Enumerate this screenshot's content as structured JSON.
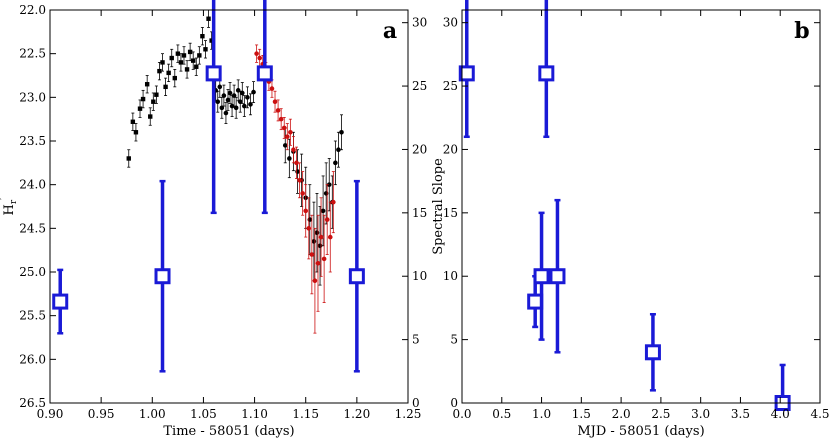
{
  "chart_data": [
    {
      "type": "scatter",
      "panel_label": "a",
      "xlabel": "Time - 58051 (days)",
      "ylabel_left": "H",
      "ylabel_left_sub": "r",
      "ylabel_left_sup": "′",
      "ylabel_right": "Spectral Slope",
      "xlim": [
        0.9,
        1.25
      ],
      "ylim_left": [
        26.5,
        22.0
      ],
      "ylim_right": [
        0,
        31
      ],
      "left_axis_inverted": true,
      "grid": false,
      "x_ticks": [
        "0.90",
        "0.95",
        "1.00",
        "1.05",
        "1.10",
        "1.15",
        "1.20",
        "1.25"
      ],
      "y_left_ticks": [
        "22.0",
        "22.5",
        "23.0",
        "23.5",
        "24.0",
        "24.5",
        "25.0",
        "25.5",
        "26.0",
        "26.5"
      ],
      "y_right_ticks": [
        "0",
        "5",
        "10",
        "15",
        "20",
        "25",
        "30"
      ],
      "series": [
        {
          "color": "#000000",
          "marker": "square",
          "axis": "left",
          "points": [
            [
              0.977,
              23.7,
              0.1
            ],
            [
              0.981,
              23.28,
              0.1
            ],
            [
              0.984,
              23.4,
              0.1
            ],
            [
              0.988,
              23.13,
              0.1
            ],
            [
              0.991,
              23.02,
              0.1
            ],
            [
              0.995,
              22.85,
              0.1
            ],
            [
              0.998,
              23.22,
              0.1
            ],
            [
              1.001,
              23.05,
              0.1
            ],
            [
              1.004,
              22.97,
              0.1
            ],
            [
              1.007,
              22.7,
              0.1
            ],
            [
              1.01,
              22.6,
              0.1
            ],
            [
              1.013,
              22.88,
              0.1
            ],
            [
              1.016,
              22.72,
              0.1
            ],
            [
              1.019,
              22.55,
              0.1
            ],
            [
              1.022,
              22.78,
              0.1
            ],
            [
              1.025,
              22.5,
              0.1
            ],
            [
              1.028,
              22.6,
              0.1
            ],
            [
              1.031,
              22.52,
              0.1
            ],
            [
              1.034,
              22.68,
              0.1
            ],
            [
              1.037,
              22.48,
              0.1
            ],
            [
              1.04,
              22.58,
              0.1
            ],
            [
              1.043,
              22.65,
              0.1
            ],
            [
              1.046,
              22.52,
              0.1
            ],
            [
              1.049,
              22.3,
              0.1
            ],
            [
              1.052,
              22.45,
              0.1
            ],
            [
              1.055,
              22.1,
              0.1
            ],
            [
              1.058,
              22.35,
              0.1
            ]
          ]
        },
        {
          "color": "#000000",
          "marker": "circle",
          "axis": "left",
          "points": [
            [
              1.062,
              22.92,
              0.12
            ],
            [
              1.064,
              23.05,
              0.12
            ],
            [
              1.066,
              22.88,
              0.12
            ],
            [
              1.068,
              23.12,
              0.12
            ],
            [
              1.07,
              22.98,
              0.12
            ],
            [
              1.072,
              23.18,
              0.12
            ],
            [
              1.074,
              23.03,
              0.12
            ],
            [
              1.076,
              22.95,
              0.12
            ],
            [
              1.078,
              23.1,
              0.12
            ],
            [
              1.08,
              22.98,
              0.12
            ],
            [
              1.082,
              23.12,
              0.12
            ],
            [
              1.084,
              22.92,
              0.12
            ],
            [
              1.086,
              23.05,
              0.12
            ],
            [
              1.088,
              22.95,
              0.12
            ],
            [
              1.09,
              23.1,
              0.12
            ],
            [
              1.093,
              23.0,
              0.12
            ],
            [
              1.096,
              23.08,
              0.12
            ],
            [
              1.099,
              22.94,
              0.12
            ],
            [
              1.13,
              23.55,
              0.2
            ],
            [
              1.134,
              23.7,
              0.22
            ],
            [
              1.138,
              23.62,
              0.22
            ],
            [
              1.142,
              23.85,
              0.25
            ],
            [
              1.146,
              23.95,
              0.3
            ],
            [
              1.15,
              24.15,
              0.35
            ],
            [
              1.154,
              24.4,
              0.4
            ],
            [
              1.158,
              24.65,
              0.45
            ],
            [
              1.161,
              24.55,
              0.45
            ],
            [
              1.164,
              24.7,
              0.45
            ],
            [
              1.167,
              24.3,
              0.4
            ],
            [
              1.17,
              24.1,
              0.35
            ],
            [
              1.173,
              24.0,
              0.3
            ],
            [
              1.176,
              24.2,
              0.3
            ],
            [
              1.179,
              23.75,
              0.25
            ],
            [
              1.182,
              23.6,
              0.2
            ],
            [
              1.185,
              23.4,
              0.2
            ]
          ]
        },
        {
          "color": "#cc1010",
          "marker": "circle",
          "axis": "left",
          "points": [
            [
              1.102,
              22.5,
              0.1
            ],
            [
              1.105,
              22.55,
              0.1
            ],
            [
              1.108,
              22.62,
              0.1
            ],
            [
              1.111,
              22.7,
              0.1
            ],
            [
              1.114,
              22.82,
              0.1
            ],
            [
              1.117,
              22.9,
              0.1
            ],
            [
              1.12,
              23.05,
              0.12
            ],
            [
              1.123,
              23.15,
              0.12
            ],
            [
              1.126,
              23.25,
              0.12
            ],
            [
              1.129,
              23.35,
              0.12
            ],
            [
              1.132,
              23.45,
              0.15
            ],
            [
              1.135,
              23.4,
              0.15
            ],
            [
              1.138,
              23.6,
              0.15
            ],
            [
              1.141,
              23.75,
              0.18
            ],
            [
              1.144,
              23.95,
              0.2
            ],
            [
              1.147,
              24.1,
              0.25
            ],
            [
              1.15,
              24.3,
              0.3
            ],
            [
              1.153,
              24.5,
              0.35
            ],
            [
              1.156,
              24.8,
              0.45
            ],
            [
              1.159,
              25.1,
              0.6
            ],
            [
              1.162,
              24.9,
              0.55
            ],
            [
              1.165,
              24.6,
              0.45
            ],
            [
              1.168,
              24.85,
              0.5
            ],
            [
              1.171,
              24.4,
              0.4
            ],
            [
              1.174,
              24.6,
              0.4
            ],
            [
              1.177,
              24.2,
              0.35
            ]
          ]
        },
        {
          "color": "#1a1ad6",
          "marker": "open-square",
          "axis": "right",
          "points": [
            [
              0.91,
              8,
              2.5
            ],
            [
              1.01,
              10,
              7.5
            ],
            [
              1.06,
              26,
              11
            ],
            [
              1.11,
              26,
              11
            ],
            [
              1.2,
              10,
              7.5
            ]
          ]
        }
      ]
    },
    {
      "type": "scatter",
      "panel_label": "b",
      "xlabel": "MJD - 58051 (days)",
      "ylabel": "",
      "xlim": [
        0.0,
        4.5
      ],
      "ylim": [
        0,
        31
      ],
      "grid": false,
      "x_ticks": [
        "0.0",
        "0.5",
        "1.0",
        "1.5",
        "2.0",
        "2.5",
        "3.0",
        "3.5",
        "4.0",
        "4.5"
      ],
      "y_ticks": [
        "0",
        "5",
        "10",
        "15",
        "20",
        "25",
        "30"
      ],
      "series": [
        {
          "color": "#1a1ad6",
          "marker": "open-square",
          "points": [
            [
              0.06,
              26,
              5,
              8
            ],
            [
              1.06,
              26,
              5,
              8
            ],
            [
              0.92,
              8,
              2,
              2
            ],
            [
              1.0,
              10,
              5,
              5
            ],
            [
              1.2,
              10,
              6,
              6
            ],
            [
              2.4,
              4,
              3,
              3
            ],
            [
              4.03,
              0,
              0,
              3
            ]
          ]
        }
      ]
    }
  ]
}
